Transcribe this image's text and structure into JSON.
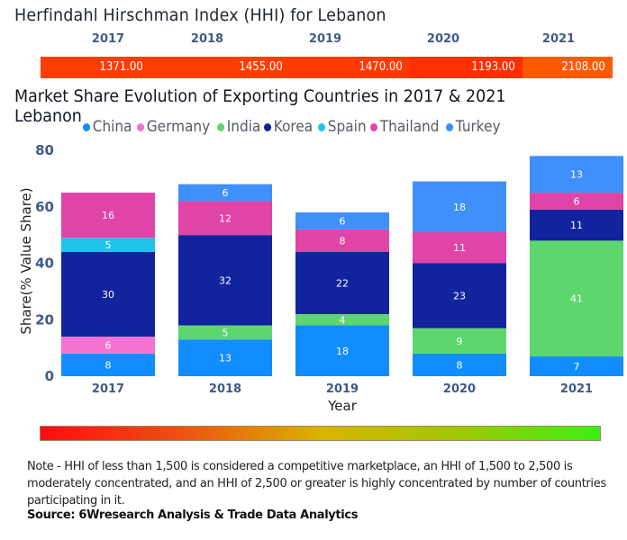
{
  "hhi": {
    "title": "Herfindahl Hirschman Index (HHI) for Lebanon",
    "years": [
      "2017",
      "2018",
      "2019",
      "2020",
      "2021"
    ],
    "values": [
      "1371.00",
      "1455.00",
      "1470.00",
      "1193.00",
      "2108.00"
    ],
    "colors": [
      "#ff3d00",
      "#ff3d00",
      "#ff3a00",
      "#ff2f00",
      "#ff5a00"
    ]
  },
  "gradient_scale": {
    "from_color": "#ff0b12",
    "mid_color": "#d9b300",
    "to_color": "#3bef12"
  },
  "note": "Note - HHI of less than 1,500 is considered a competitive marketplace, an HHI of 1,500 to 2,500 is moderately concentrated, and an HHI of 2,500 or greater is highly concentrated by number of countries participating in it.",
  "source": "Source: 6Wresearch Analysis & Trade Data Analytics",
  "chart_data": {
    "type": "bar",
    "stacked": true,
    "title": "Market Share Evolution of Exporting Countries in 2017 & 2021 Lebanon",
    "xlabel": "Year",
    "ylabel": "Share(% Value Share)",
    "ylim": [
      0,
      80
    ],
    "yticks": [
      "0",
      "20",
      "40",
      "60",
      "80"
    ],
    "grid": false,
    "legend_position": "top",
    "categories": [
      "2017",
      "2018",
      "2019",
      "2020",
      "2021"
    ],
    "series": [
      {
        "name": "China",
        "color": "#118dff",
        "values": [
          8,
          13,
          18,
          8,
          7
        ]
      },
      {
        "name": "Germany",
        "color": "#f472d0",
        "values": [
          6,
          0,
          0,
          0,
          0
        ]
      },
      {
        "name": "India",
        "color": "#5dd66e",
        "values": [
          0,
          5,
          4,
          9,
          41
        ]
      },
      {
        "name": "Korea",
        "color": "#12239e",
        "values": [
          30,
          32,
          22,
          23,
          11
        ]
      },
      {
        "name": "Spain",
        "color": "#1fc3ec",
        "values": [
          5,
          0,
          0,
          0,
          0
        ]
      },
      {
        "name": "Thailand",
        "color": "#e044a7",
        "values": [
          16,
          12,
          8,
          11,
          6
        ]
      },
      {
        "name": "Turkey",
        "color": "#3f90fb",
        "values": [
          0,
          6,
          6,
          18,
          13
        ]
      }
    ]
  }
}
